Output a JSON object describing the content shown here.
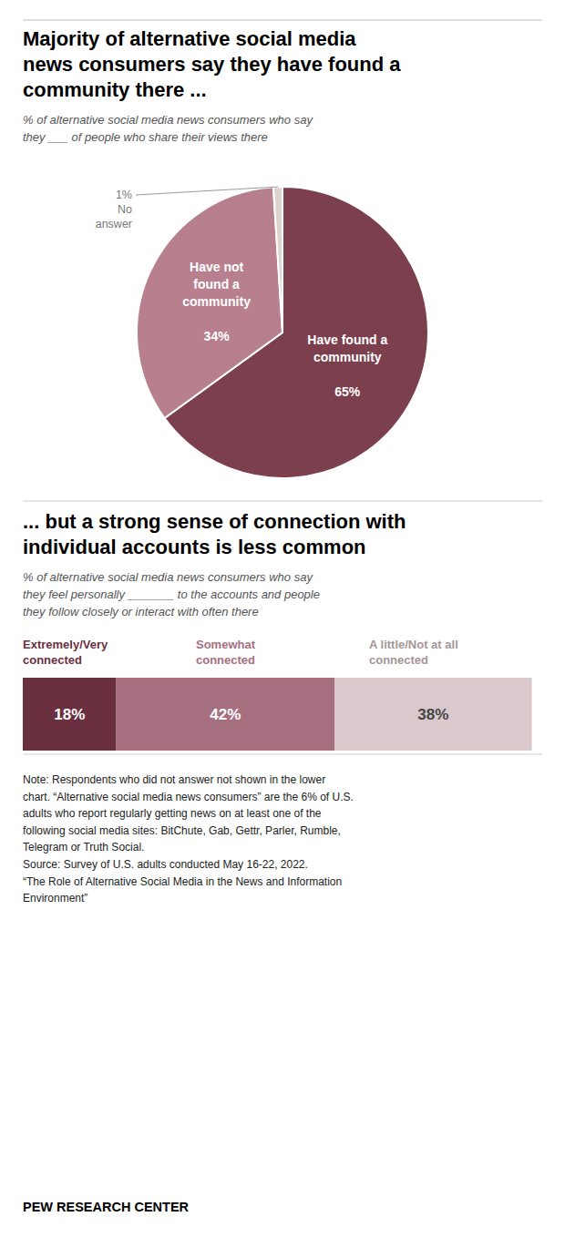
{
  "chart_data": [
    {
      "type": "pie",
      "title": "Majority of alternative social media\nnews consumers say they have found a\ncommunity there ...",
      "subtitle": "% of alternative social media news consumers who say\nthey ___ of people who share their views there",
      "categories": [
        "Have found a\ncommunity",
        "Have not\nfound a\ncommunity",
        "No\nanswer"
      ],
      "values": [
        65,
        34,
        1
      ],
      "value_labels": [
        "65%",
        "34%",
        "1%"
      ],
      "colors": [
        "#7b3f4e",
        "#b8808e",
        "#e0d5ce"
      ],
      "data_labels": true
    },
    {
      "type": "bar",
      "orientation": "horizontal",
      "stacked": true,
      "title": "... but a strong sense of connection with\nindividual accounts is less common",
      "subtitle": "% of alternative social media news consumers who say\nthey feel personally _______ to the accounts and people\nthey follow closely or interact with often there",
      "categories": [
        null
      ],
      "series": [
        {
          "name": "Extremely/Very\nconnected",
          "color": "#6b3040",
          "values": [
            18
          ],
          "value_labels": [
            "18%"
          ]
        },
        {
          "name": "Somewhat\nconnected",
          "color": "#a67080",
          "values": [
            42
          ],
          "value_labels": [
            "42%"
          ]
        },
        {
          "name": "A little/Not at all\nconnected",
          "color": "#dbc8cc",
          "values": [
            38
          ],
          "value_labels": [
            "38%"
          ]
        }
      ],
      "xlim": [
        0,
        100
      ],
      "data_labels": true,
      "tick_labels": false,
      "annotations": [
        "Note: Respondents who did not answer not shown in the lower\nchart. “Alternative social media news consumers” are the 6% of U.S.\nadults who report regularly getting news on at least one of the\nfollowing social media sites: BitChute, Gab, Gettr, Parler, Rumble,\nTelegram or Truth Social.\nSource: Survey of U.S. adults conducted May 16-22, 2022.\n“The Role of Alternative Social Media in the News and Information\nEnvironment”",
        "PEW RESEARCH CENTER"
      ]
    }
  ]
}
